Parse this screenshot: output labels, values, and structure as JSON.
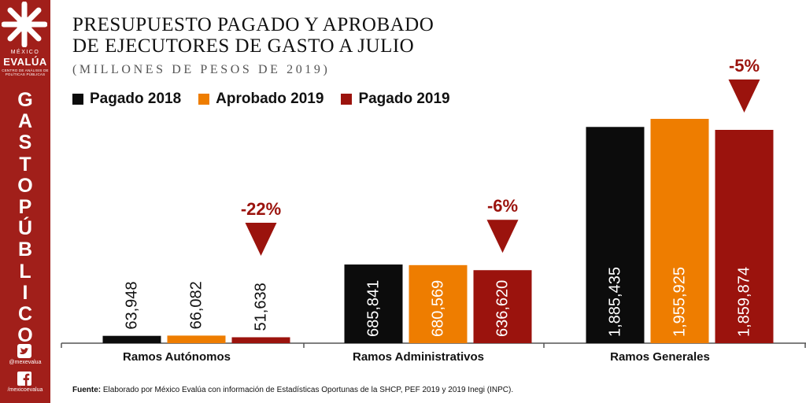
{
  "sidebar": {
    "org_top": "MÉXICO",
    "org_name": "EVALÚA",
    "org_subtitle": "CENTRO DE ANÁLISIS DE POLÍTICAS PÚBLICAS",
    "vertical_title": [
      "G",
      "A",
      "S",
      "T",
      "O",
      "P",
      "Ú",
      "B",
      "L",
      "I",
      "C",
      "O"
    ],
    "twitter_handle": "@mexevalua",
    "facebook_handle": "/mexicoevalua"
  },
  "title_lines": [
    "PRESUPUESTO PAGADO Y APROBADO",
    "DE EJECUTORES DE GASTO A JULIO"
  ],
  "subtitle": "(MILLONES DE PESOS DE 2019)",
  "colors": {
    "black": "#0c0c0c",
    "orange": "#ee7d00",
    "red": "#9b130d",
    "sidebar": "#a11f1a",
    "axis": "#555555"
  },
  "chart_data": {
    "type": "bar",
    "categories": [
      "Ramos Autónomos",
      "Ramos Administrativos",
      "Ramos Generales"
    ],
    "series": [
      {
        "name": "Pagado 2018",
        "color": "#0c0c0c",
        "values": [
          63948,
          685841,
          1885435
        ],
        "labels": [
          "63,948",
          "685,841",
          "1,885,435"
        ]
      },
      {
        "name": "Aprobado 2019",
        "color": "#ee7d00",
        "values": [
          66082,
          680569,
          1955925
        ],
        "labels": [
          "66,082",
          "680,569",
          "1,955,925"
        ]
      },
      {
        "name": "Pagado 2019",
        "color": "#9b130d",
        "values": [
          51638,
          636620,
          1859874
        ],
        "labels": [
          "51,638",
          "636,620",
          "1,859,874"
        ]
      }
    ],
    "changes": [
      "-22%",
      "-6%",
      "-5%"
    ],
    "ylim": [
      0,
      1955925
    ]
  },
  "source": {
    "label": "Fuente:",
    "text": "Elaborado por México Evalúa con información de Estadísticas Oportunas de la SHCP, PEF 2019 y 2019 Inegi (INPC)."
  }
}
